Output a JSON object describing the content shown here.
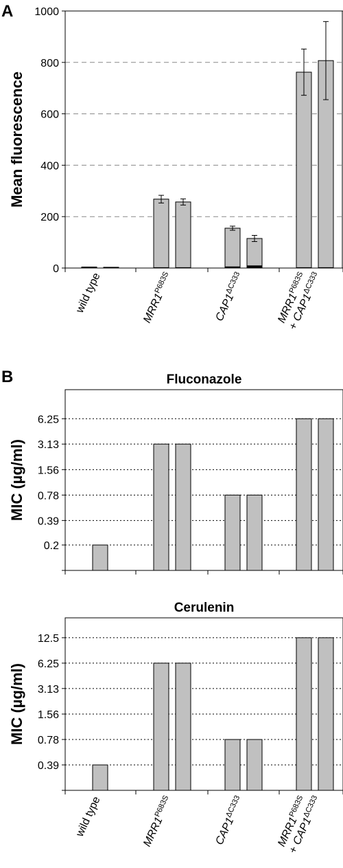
{
  "panel_a_letter": "A",
  "panel_b_letter": "B",
  "chart_data": [
    {
      "type": "bar",
      "panel": "A",
      "title": "",
      "xlabel": "",
      "ylabel": "Mean fluorescence",
      "ylim": [
        0,
        1000
      ],
      "yticks": [
        0,
        200,
        400,
        600,
        800,
        1000
      ],
      "grid": true,
      "categories": [
        "wild type",
        "MRR1 P683S",
        "CAP1 ΔC333",
        "MRR1 P683S + CAP1 ΔC333"
      ],
      "series": [
        {
          "values": [
            4,
            268,
            155,
            762
          ],
          "errors": [
            0,
            15,
            8,
            90
          ]
        },
        {
          "values": [
            3,
            257,
            115,
            807
          ],
          "errors": [
            0,
            12,
            12,
            152
          ]
        }
      ],
      "dark_base_values": [
        [
          4,
          3,
          6,
          3
        ],
        [
          3,
          3,
          10,
          3
        ]
      ]
    },
    {
      "type": "bar",
      "panel": "B",
      "title": "Fluconazole",
      "xlabel": "",
      "ylabel": "MIC (µg/ml)",
      "scale": "log2",
      "yticks": [
        "0.2",
        "0.39",
        "0.78",
        "1.56",
        "3.13",
        "6.25"
      ],
      "grid": true,
      "categories": [
        "wild type",
        "MRR1 P683S",
        "CAP1 ΔC333",
        "MRR1 P683S + CAP1 ΔC333"
      ],
      "series": [
        {
          "values": [
            0.2,
            3.13,
            0.78,
            6.25
          ]
        },
        {
          "values": [
            null,
            3.13,
            0.78,
            6.25
          ]
        }
      ]
    },
    {
      "type": "bar",
      "panel": "B",
      "title": "Cerulenin",
      "xlabel": "",
      "ylabel": "MIC (µg/ml)",
      "scale": "log2",
      "yticks": [
        "0.39",
        "0.78",
        "1.56",
        "3.13",
        "6.25",
        "12.5"
      ],
      "grid": true,
      "categories": [
        "wild type",
        "MRR1 P683S",
        "CAP1 ΔC333",
        "MRR1 P683S + CAP1 ΔC333"
      ],
      "series": [
        {
          "values": [
            0.39,
            6.25,
            0.78,
            12.5
          ]
        },
        {
          "values": [
            null,
            6.25,
            0.78,
            12.5
          ]
        }
      ]
    }
  ],
  "category_labels": {
    "wild_type": "wild type",
    "mrr1": "MRR1",
    "mrr1_sup": "P683S",
    "cap1": "CAP1",
    "cap1_sup": "ΔC333",
    "plus": "+ "
  },
  "colors": {
    "bar_fill": "#c0c0c0",
    "bar_base": "#000000",
    "grid": "#888888"
  }
}
